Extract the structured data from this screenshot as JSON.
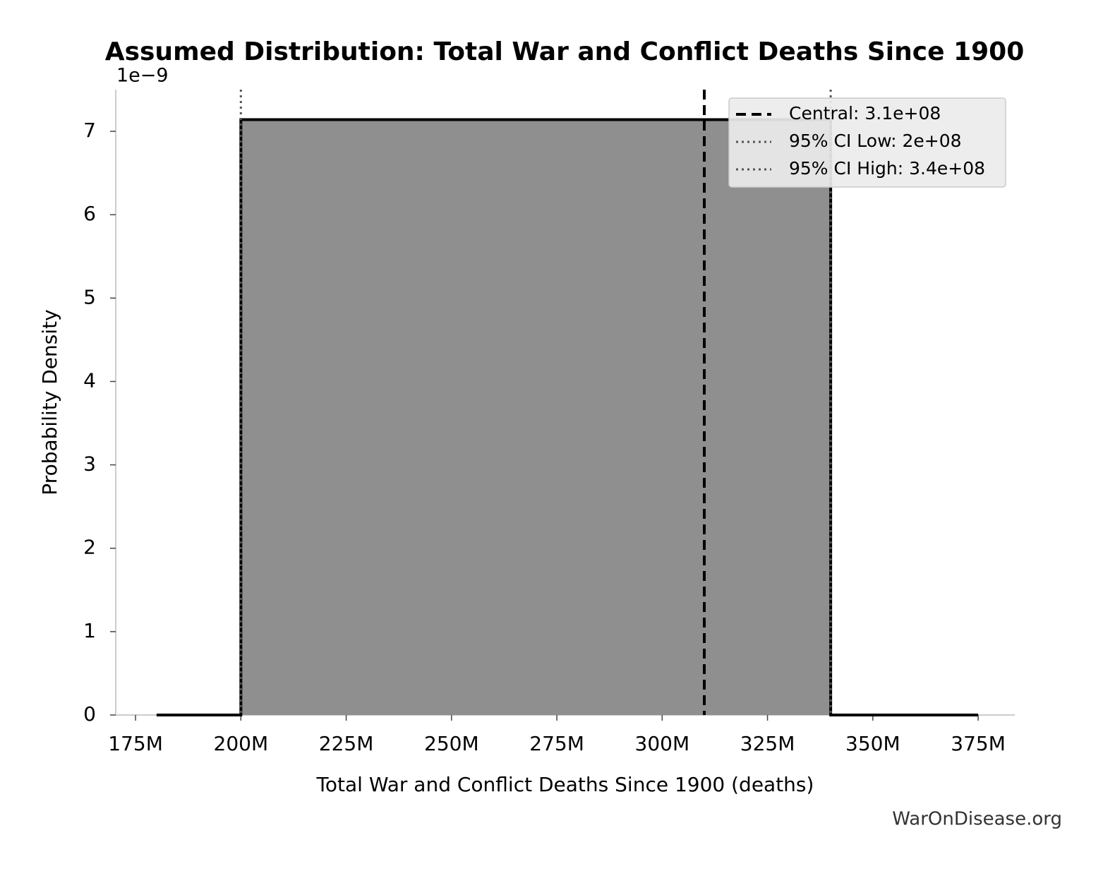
{
  "chart_data": {
    "type": "line",
    "title": "Assumed Distribution: Total War and Conflict Deaths Since 1900",
    "x_label": "Total War and Conflict Deaths Since 1900 (deaths)",
    "y_label": "Probability Density",
    "y_offset_label": "1e−9",
    "x": [
      180000000,
      200000000,
      200000000,
      340000000,
      340000000,
      375000000
    ],
    "values": [
      0,
      0,
      7.14,
      7.14,
      0,
      0
    ],
    "color": "#000000",
    "fill_color": "#8f8f8f",
    "xlim": [
      170300000,
      383700000
    ],
    "xticks": [
      {
        "value": 175000000,
        "label": "175M"
      },
      {
        "value": 200000000,
        "label": "200M"
      },
      {
        "value": 225000000,
        "label": "225M"
      },
      {
        "value": 250000000,
        "label": "250M"
      },
      {
        "value": 275000000,
        "label": "275M"
      },
      {
        "value": 300000000,
        "label": "300M"
      },
      {
        "value": 325000000,
        "label": "325M"
      },
      {
        "value": 350000000,
        "label": "350M"
      },
      {
        "value": 375000000,
        "label": "375M"
      }
    ],
    "ylim": [
      0,
      7.5
    ],
    "yticks": [
      0,
      1,
      2,
      3,
      4,
      5,
      6,
      7
    ],
    "vlines": [
      {
        "name": "Central: 3.1e+08",
        "value": 310000000,
        "style": "dashed",
        "color": "#000000"
      },
      {
        "name": "95% CI Low: 2e+08",
        "value": 200000000,
        "style": "dotted",
        "color": "#555555"
      },
      {
        "name": "95% CI High: 3.4e+08",
        "value": 340000000,
        "style": "dotted",
        "color": "#555555"
      }
    ],
    "legend": "upper right",
    "footer": "WarOnDisease.org"
  }
}
